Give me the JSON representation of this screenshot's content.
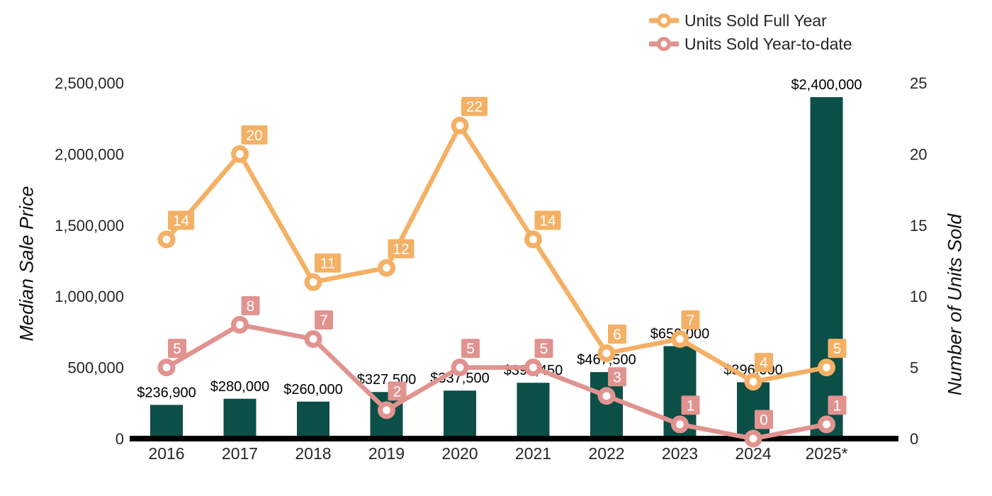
{
  "chart_data": {
    "type": "bar+line",
    "categories": [
      "2016",
      "2017",
      "2018",
      "2019",
      "2020",
      "2021",
      "2022",
      "2023",
      "2024",
      "2025*"
    ],
    "bar_series": {
      "name": "Median Sale Price",
      "color": "#0c4f47",
      "values": [
        236900,
        280000,
        260000,
        327500,
        337500,
        392450,
        467500,
        650000,
        396000,
        2400000
      ],
      "labels": [
        "$236,900",
        "$280,000",
        "$260,000",
        "$327,500",
        "$337,500",
        "$392,450",
        "$467,500",
        "$650,000",
        "$396,000",
        "$2,400,000"
      ]
    },
    "line_series": [
      {
        "name": "Units Sold Full Year",
        "color": "#f4b064",
        "values": [
          14,
          20,
          11,
          12,
          22,
          14,
          6,
          7,
          4,
          5
        ]
      },
      {
        "name": "Units Sold Year-to-date",
        "color": "#e19390",
        "values": [
          5,
          8,
          7,
          2,
          5,
          5,
          3,
          1,
          0,
          1
        ]
      }
    ],
    "left_axis": {
      "title": "Median Sale Price",
      "range": [
        0,
        2500000
      ],
      "ticks": [
        0,
        500000,
        1000000,
        1500000,
        2000000,
        2500000
      ],
      "tick_labels": [
        "0",
        "500,000",
        "1,000,000",
        "1,500,000",
        "2,000,000",
        "2,500,000"
      ]
    },
    "right_axis": {
      "title": "Number of Units Sold",
      "range": [
        0,
        25
      ],
      "ticks": [
        0,
        5,
        10,
        15,
        20,
        25
      ],
      "tick_labels": [
        "0",
        "5",
        "10",
        "15",
        "20",
        "25"
      ]
    },
    "legend": {
      "position": "top-right",
      "items": [
        "Units Sold Full Year",
        "Units Sold Year-to-date"
      ]
    },
    "grid": false,
    "background": "#ffffff",
    "baseline_color": "#000000",
    "badge_text_color": "#ffffff",
    "value_label_color": "#000000",
    "axis_text_color": "#262626"
  }
}
